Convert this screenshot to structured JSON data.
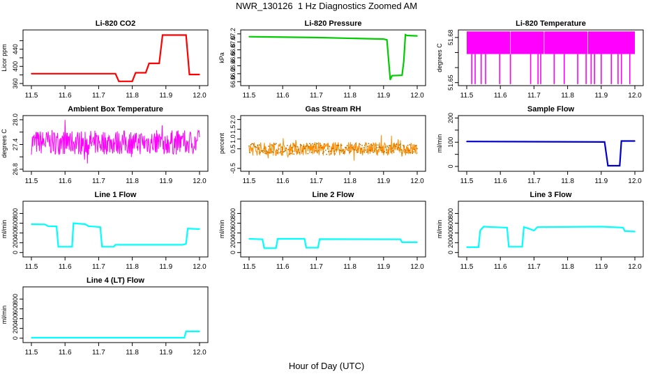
{
  "title": "NWR_130126  1 Hz Diagnostics Zoomed AM",
  "xlabel": "Hour of Day (UTC)",
  "chart_data": [
    {
      "type": "line",
      "title": "Li-820 CO2",
      "ylabel": "Licor ppm",
      "color": "#ff0000",
      "xlim": [
        11.5,
        12.0
      ],
      "ylim": [
        355,
        485
      ],
      "yticks": [
        "360",
        "400",
        "440"
      ],
      "yticks_extra": [
        "380",
        "420",
        "460"
      ],
      "xticks": [
        "11.5",
        "11.6",
        "11.7",
        "11.8",
        "11.9",
        "12.0"
      ],
      "x": [
        11.5,
        11.69,
        11.75,
        11.76,
        11.8,
        11.81,
        11.84,
        11.85,
        11.88,
        11.89,
        11.96,
        11.97,
        12.0
      ],
      "y": [
        383,
        383,
        383,
        365,
        365,
        385,
        385,
        407,
        407,
        473,
        473,
        381,
        381
      ]
    },
    {
      "type": "line",
      "title": "Li-820 Pressure",
      "ylabel": "kPa",
      "color": "#00cc00",
      "xlim": [
        11.5,
        12.0
      ],
      "ylim": [
        65.9,
        67.3
      ],
      "yticks": [
        "66.0",
        "66.2",
        "66.4",
        "66.6",
        "66.8",
        "67.0",
        "67.2"
      ],
      "xticks": [
        "11.5",
        "11.6",
        "11.7",
        "11.8",
        "11.9",
        "12.0"
      ],
      "x": [
        11.5,
        11.7,
        11.9,
        11.91,
        11.92,
        11.925,
        11.955,
        11.96,
        11.965,
        11.97,
        12.0
      ],
      "y": [
        67.13,
        67.11,
        67.07,
        67.05,
        66.05,
        66.15,
        66.16,
        66.5,
        67.18,
        67.16,
        67.15
      ]
    },
    {
      "type": "line",
      "title": "Li-820 Temperature",
      "ylabel": "degrees C",
      "color": "#ff00ff",
      "xlim": [
        11.5,
        12.0
      ],
      "ylim": [
        51.648,
        51.685
      ],
      "yticks": [
        "51.65",
        "51.68"
      ],
      "yticks_extra": [
        "51.66",
        "51.67"
      ],
      "xticks": [
        "11.5",
        "11.6",
        "11.7",
        "11.8",
        "11.9",
        "12.0"
      ],
      "y_band": [
        51.669,
        51.684
      ],
      "y_spike_low": 51.649,
      "spikes_x": [
        11.515,
        11.525,
        11.543,
        11.556,
        11.598,
        11.63,
        11.69,
        11.712,
        11.72,
        11.76,
        11.79,
        11.83,
        11.855,
        11.87,
        11.88,
        11.9,
        11.93,
        11.95,
        11.96,
        11.985
      ]
    },
    {
      "type": "line",
      "title": "Ambient Box Temperature",
      "ylabel": "degrees C",
      "color": "#ff00ff",
      "xlim": [
        11.5,
        12.0
      ],
      "ylim": [
        26.75,
        28.1
      ],
      "yticks": [
        "26.8",
        "27.4",
        "28.0"
      ],
      "yticks_extra": [
        "27.1",
        "27.7"
      ],
      "xticks": [
        "11.5",
        "11.6",
        "11.7",
        "11.8",
        "11.9",
        "12.0"
      ],
      "y_mean": 27.45,
      "y_noise": 0.3
    },
    {
      "type": "line",
      "title": "Gas Stream RH",
      "ylabel": "percent",
      "color": "#ff8c00",
      "xlim": [
        11.5,
        12.0
      ],
      "ylim": [
        -0.65,
        2.2
      ],
      "yticks": [
        "-0.5",
        "0.5",
        "1.0",
        "1.5",
        "2.0"
      ],
      "xticks": [
        "11.5",
        "11.6",
        "11.7",
        "11.8",
        "11.9",
        "12.0"
      ],
      "y_mean": 0.5,
      "y_noise": 0.35
    },
    {
      "type": "line",
      "title": "Sample Flow",
      "ylabel": "ml/min",
      "color": "#0000cc",
      "xlim": [
        11.5,
        12.0
      ],
      "ylim": [
        -20,
        210
      ],
      "yticks": [
        "0",
        "100",
        "200"
      ],
      "yticks_extra": [
        "50",
        "150"
      ],
      "xticks": [
        "11.5",
        "11.6",
        "11.7",
        "11.8",
        "11.9",
        "12.0"
      ],
      "x": [
        11.5,
        11.91,
        11.92,
        11.955,
        11.96,
        12.0
      ],
      "y": [
        103,
        101,
        3,
        3,
        105,
        105
      ]
    },
    {
      "type": "line",
      "title": "Line 1 Flow",
      "ylabel": "ml/min",
      "color": "#00ffff",
      "xlim": [
        11.5,
        12.0
      ],
      "ylim": [
        -90,
        1050
      ],
      "yticks": [
        "0",
        "200",
        "400",
        "600",
        "800"
      ],
      "xticks": [
        "11.5",
        "11.6",
        "11.7",
        "11.8",
        "11.9",
        "12.0"
      ],
      "x": [
        11.5,
        11.54,
        11.55,
        11.575,
        11.58,
        11.621,
        11.625,
        11.66,
        11.67,
        11.705,
        11.71,
        11.745,
        11.75,
        11.95,
        11.96,
        11.965,
        12.0
      ],
      "y": [
        580,
        575,
        540,
        535,
        120,
        120,
        600,
        580,
        540,
        520,
        120,
        120,
        160,
        160,
        180,
        490,
        480
      ]
    },
    {
      "type": "line",
      "title": "Line 2 Flow",
      "ylabel": "ml/min",
      "color": "#00ffff",
      "xlim": [
        11.5,
        12.0
      ],
      "ylim": [
        -90,
        1050
      ],
      "yticks": [
        "0",
        "200",
        "400",
        "600",
        "800"
      ],
      "xticks": [
        "11.5",
        "11.6",
        "11.7",
        "11.8",
        "11.9",
        "12.0"
      ],
      "x": [
        11.5,
        11.54,
        11.545,
        11.58,
        11.585,
        11.665,
        11.67,
        11.705,
        11.71,
        11.95,
        11.955,
        12.0
      ],
      "y": [
        280,
        270,
        90,
        90,
        280,
        280,
        100,
        100,
        275,
        270,
        210,
        210
      ]
    },
    {
      "type": "line",
      "title": "Line 3 Flow",
      "ylabel": "ml/min",
      "color": "#00ffff",
      "xlim": [
        11.5,
        12.0
      ],
      "ylim": [
        -90,
        1050
      ],
      "yticks": [
        "0",
        "200",
        "400",
        "600",
        "800"
      ],
      "xticks": [
        "11.5",
        "11.6",
        "11.7",
        "11.8",
        "11.9",
        "12.0"
      ],
      "x": [
        11.5,
        11.535,
        11.54,
        11.55,
        11.58,
        11.62,
        11.625,
        11.665,
        11.67,
        11.68,
        11.7,
        11.71,
        11.9,
        11.965,
        11.97,
        12.0
      ],
      "y": [
        110,
        110,
        450,
        530,
        520,
        510,
        120,
        120,
        520,
        500,
        450,
        520,
        530,
        510,
        440,
        430
      ]
    },
    {
      "type": "line",
      "title": "Line 4 (LT) Flow",
      "ylabel": "ml/min",
      "color": "#00ffff",
      "xlim": [
        11.5,
        12.0
      ],
      "ylim": [
        -90,
        1050
      ],
      "yticks": [
        "0",
        "200",
        "400",
        "600",
        "800"
      ],
      "xticks": [
        "11.5",
        "11.6",
        "11.7",
        "11.8",
        "11.9",
        "12.0"
      ],
      "x": [
        11.5,
        11.955,
        11.96,
        12.0
      ],
      "y": [
        10,
        10,
        140,
        140
      ]
    }
  ]
}
